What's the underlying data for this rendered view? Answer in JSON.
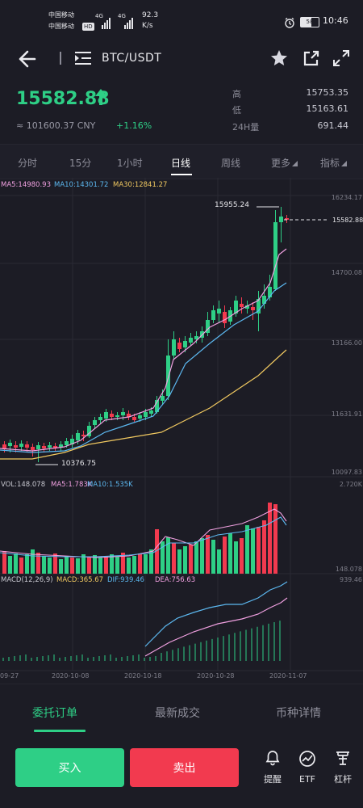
{
  "status_bar": {
    "carrier1": "中国移动",
    "carrier2": "中国移动",
    "net1": "4G",
    "net2": "4G",
    "hd": "HD",
    "speed_value": "92.3",
    "speed_unit": "K/s",
    "battery": "58",
    "time": "10:46"
  },
  "header": {
    "pair": "BTC/USDT"
  },
  "ticker": {
    "last_price": "15582.88",
    "cny_value": "≈ 101600.37 CNY",
    "change_pct": "+1.16%",
    "high_label": "高",
    "high_value": "15753.35",
    "low_label": "低",
    "low_value": "15163.61",
    "vol_label": "24H量",
    "vol_value": "691.44"
  },
  "tabs": {
    "items": [
      "分时",
      "15分",
      "1小时",
      "日线",
      "周线",
      "更多",
      "指标"
    ],
    "active": "日线"
  },
  "ma_legend": {
    "ma5": "MA5:14980.93",
    "ma10": "MA10:14301.72",
    "ma30": "MA30:12841.27"
  },
  "price_axis": [
    "16234.17",
    "14700.08",
    "13166.00",
    "11631.91",
    "10097.83"
  ],
  "annotations": {
    "high_marker": "15955.24",
    "low_marker": "10376.75",
    "current_marker": "15582.88"
  },
  "volume": {
    "legend_vol": "VOL:148.078",
    "legend_ma5": "MA5:1.783K",
    "legend_ma10": "MA10:1.535K",
    "axis_top": "2.720K",
    "axis_bottom": "148.078"
  },
  "macd": {
    "legend_params": "MACD(12,26,9)",
    "legend_macd": "MACD:365.67",
    "legend_dif": "DIF:939.46",
    "legend_dea": "DEA:756.63",
    "axis_top": "939.46"
  },
  "dates": [
    "09-27",
    "2020-10-08",
    "2020-10-18",
    "2020-10-28",
    "2020-11-07"
  ],
  "bottom_tabs": {
    "items": [
      "委托订单",
      "最新成交",
      "币种详情"
    ],
    "active": "委托订单"
  },
  "actions": {
    "buy": "买入",
    "sell": "卖出"
  },
  "tools": {
    "alert": "提醒",
    "etf": "ETF",
    "leverage": "杠杆"
  },
  "colors": {
    "up": "#2ecf86",
    "down": "#f23a4f",
    "ma5": "#f0a0e0",
    "ma10": "#5cb8f0",
    "ma30": "#f0c860",
    "background": "#1c1c25",
    "tab_active": "#2ecf86"
  }
}
